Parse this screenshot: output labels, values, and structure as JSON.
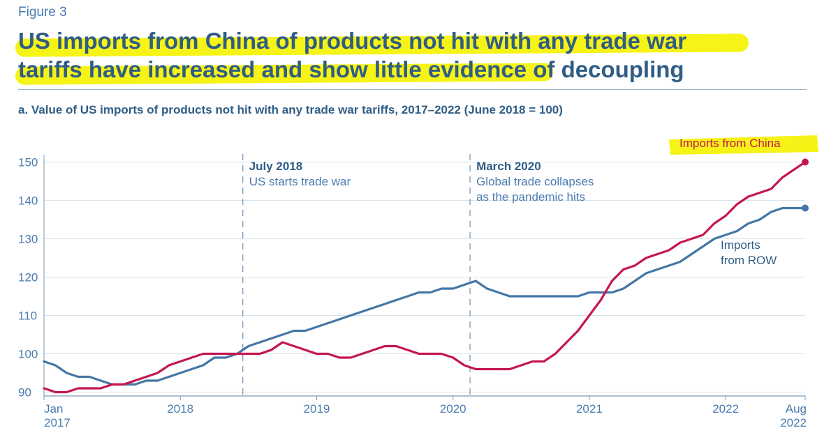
{
  "figure_label": "Figure 3",
  "title_lines": [
    "US imports from China of products not hit with any trade war",
    "tariffs have increased and show little evidence of decoupling"
  ],
  "subtitle": "a. Value of US imports of products not hit with any trade war tariffs, 2017–2022 (June 2018 = 100)",
  "colors": {
    "china": "#c4184f",
    "row": "#4477a6",
    "highlight": "#f6f317",
    "text_dark": "#2f5d85",
    "text_light": "#4a7bb0"
  },
  "chart_data": {
    "type": "line",
    "title": "a. Value of US imports of products not hit with any trade war tariffs, 2017–2022 (June 2018 = 100)",
    "xlabel": "",
    "ylabel": "",
    "ylim": [
      89,
      151
    ],
    "yticks": [
      90,
      100,
      110,
      120,
      130,
      140,
      150
    ],
    "xlim": [
      0,
      67
    ],
    "xticks": [
      {
        "x": 0,
        "label1": "Jan",
        "label2": "2017"
      },
      {
        "x": 12,
        "label1": "2018",
        "label2": ""
      },
      {
        "x": 24,
        "label1": "2019",
        "label2": ""
      },
      {
        "x": 36,
        "label1": "2020",
        "label2": ""
      },
      {
        "x": 48,
        "label1": "2021",
        "label2": ""
      },
      {
        "x": 60,
        "label1": "2022",
        "label2": ""
      },
      {
        "x": 67,
        "label1": "Aug",
        "label2": "2022"
      }
    ],
    "series": [
      {
        "name": "Imports from ROW",
        "label_lines": [
          "Imports",
          "from ROW"
        ],
        "color": "#4477a6",
        "values": [
          98,
          97,
          95,
          94,
          94,
          93,
          92,
          92,
          92,
          93,
          93,
          94,
          95,
          96,
          97,
          99,
          99,
          100,
          102,
          103,
          104,
          105,
          106,
          106,
          107,
          108,
          109,
          110,
          111,
          112,
          113,
          114,
          115,
          116,
          116,
          117,
          117,
          118,
          119,
          117,
          116,
          115,
          115,
          115,
          115,
          115,
          115,
          115,
          116,
          116,
          116,
          117,
          119,
          121,
          122,
          123,
          124,
          126,
          128,
          130,
          131,
          132,
          134,
          135,
          137,
          138,
          138,
          138
        ]
      },
      {
        "name": "Imports from China",
        "label_lines": [
          "Imports from China"
        ],
        "color": "#c4184f",
        "values": [
          91,
          90,
          90,
          91,
          91,
          91,
          92,
          92,
          93,
          94,
          95,
          97,
          98,
          99,
          100,
          100,
          100,
          100,
          100,
          100,
          101,
          103,
          102,
          101,
          100,
          100,
          99,
          99,
          100,
          101,
          102,
          102,
          101,
          100,
          100,
          100,
          99,
          97,
          96,
          96,
          96,
          96,
          97,
          98,
          98,
          100,
          103,
          106,
          110,
          114,
          119,
          122,
          123,
          125,
          126,
          127,
          129,
          130,
          131,
          134,
          136,
          139,
          141,
          142,
          143,
          146,
          148,
          150
        ]
      }
    ],
    "annotations": [
      {
        "x": 17.5,
        "title": "July 2018",
        "lines": [
          "US starts trade war"
        ]
      },
      {
        "x": 37.5,
        "title": "March 2020",
        "lines": [
          "Global trade collapses",
          "as the pandemic hits"
        ]
      }
    ]
  }
}
